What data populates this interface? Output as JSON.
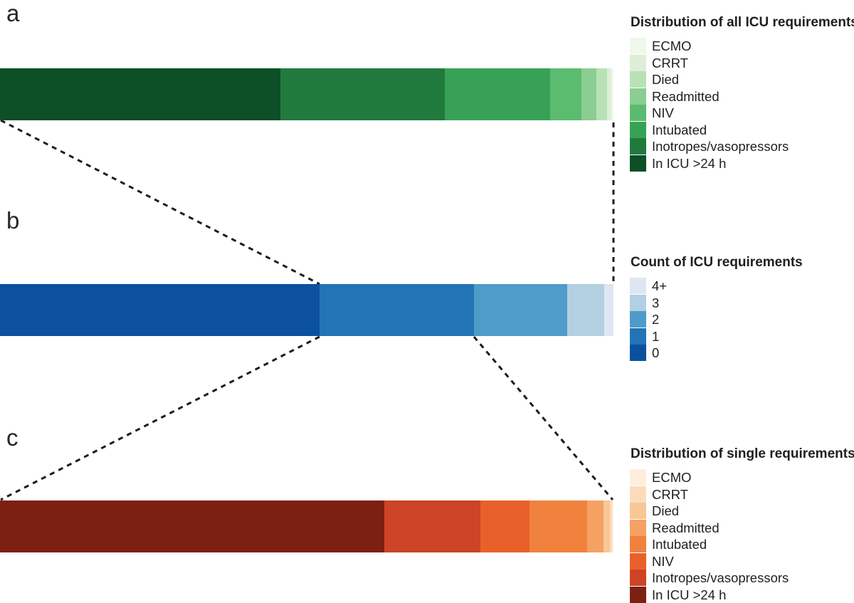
{
  "figure": {
    "kind": "three-panel stacked bar figure with zoom connector lines",
    "background": "#ffffff",
    "connector_color": "#1c1c1c",
    "text_color": "#1f1f1f"
  },
  "chart_data": [
    {
      "type": "bar",
      "panel_label": "a",
      "title": "Distribution of all ICU requirements",
      "stacked": true,
      "orientation": "horizontal",
      "axes_visible": false,
      "categories": [
        "In ICU >24 h",
        "Inotropes/vasopressors",
        "Intubated",
        "NIV",
        "Readmitted",
        "Died",
        "CRRT",
        "ECMO"
      ],
      "values_pct": [
        45.71,
        26.8,
        17.17,
        5.1,
        2.44,
        1.74,
        0.7,
        0.34
      ],
      "colors": [
        "#0d4f26",
        "#217a3d",
        "#37a256",
        "#5bbb6e",
        "#8ccd92",
        "#b8e2b6",
        "#dcefd6",
        "#eff8eb"
      ],
      "legend_position": "right",
      "legend_top_to_bottom": [
        "ECMO",
        "CRRT",
        "Died",
        "Readmitted",
        "NIV",
        "Intubated",
        "Inotropes/vasopressors",
        "In ICU >24 h"
      ]
    },
    {
      "type": "bar",
      "panel_label": "b",
      "title": "Count of ICU requirements",
      "stacked": true,
      "orientation": "horizontal",
      "axes_visible": false,
      "categories": [
        "0",
        "1",
        "2",
        "3",
        "4+"
      ],
      "values_pct": [
        52.09,
        25.17,
        15.2,
        6.03,
        1.51
      ],
      "colors": [
        "#0b519f",
        "#2274b6",
        "#4f9bc9",
        "#b2d0e1",
        "#dfe6f2"
      ],
      "legend_position": "right",
      "legend_top_to_bottom": [
        "4+",
        "3",
        "2",
        "1",
        "0"
      ]
    },
    {
      "type": "bar",
      "panel_label": "c",
      "title": "Distribution of single requirements",
      "stacked": true,
      "orientation": "horizontal",
      "axes_visible": false,
      "categories": [
        "In ICU >24 h",
        "Inotropes/vasopressors",
        "NIV",
        "Intubated",
        "Readmitted",
        "Died",
        "CRRT",
        "ECMO"
      ],
      "values_pct": [
        62.65,
        15.66,
        8.0,
        9.4,
        2.67,
        1.04,
        0.35,
        0.23
      ],
      "colors": [
        "#7c2112",
        "#cc4425",
        "#e9612a",
        "#f0823e",
        "#f5a164",
        "#f9c795",
        "#fbdcba",
        "#fdeedd"
      ],
      "legend_position": "right",
      "legend_top_to_bottom": [
        "ECMO",
        "CRRT",
        "Died",
        "Readmitted",
        "Intubated",
        "NIV",
        "Inotropes/vasopressors",
        "In ICU >24 h"
      ]
    }
  ]
}
